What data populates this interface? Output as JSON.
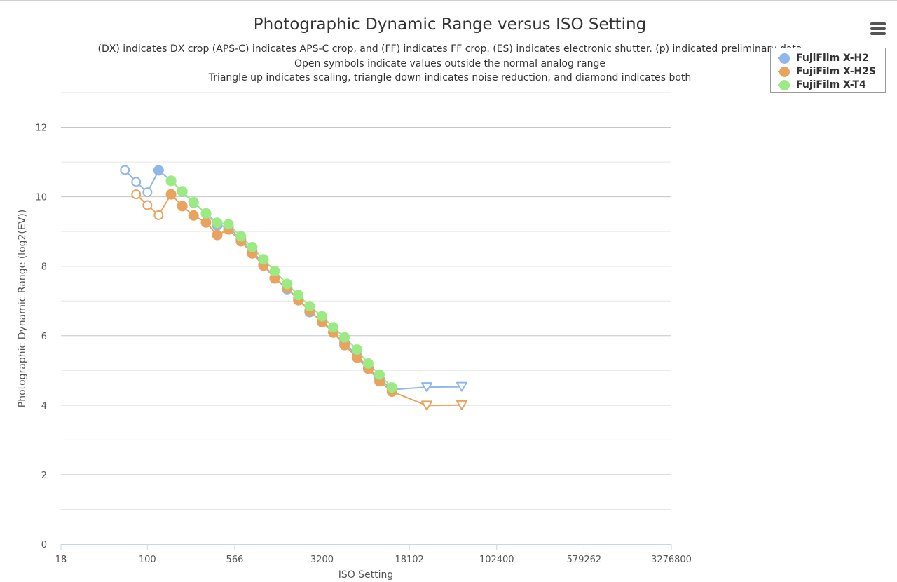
{
  "chart_data": {
    "type": "line",
    "title": "Photographic Dynamic Range versus ISO Setting",
    "subtitle": [
      "(DX) indicates DX crop (APS-C) indicates APS-C crop, and (FF) indicates FF crop. (ES) indicates electronic shutter. (p) indicated preliminary data",
      "Open symbols indicate values outside the normal analog range",
      "Triangle up indicates scaling, triangle down indicates noise reduction, and diamond indicates both"
    ],
    "xlabel": "ISO Setting",
    "ylabel": "Photographic Dynamic Range (log2(EV))",
    "x_scale": "log2",
    "xlim": [
      18,
      3276800
    ],
    "ylim": [
      0,
      13
    ],
    "x_ticks": [
      18,
      100,
      566,
      3200,
      18102,
      102400,
      579262,
      3276800
    ],
    "x_tick_labels": [
      "18",
      "100",
      "566",
      "3200",
      "18102",
      "102400",
      "579262",
      "3276800"
    ],
    "y_ticks": [
      0,
      2,
      4,
      6,
      8,
      10,
      12
    ],
    "y_tick_labels": [
      "0",
      "2",
      "4",
      "6",
      "8",
      "10",
      "12"
    ],
    "grid": true,
    "legend_position": "top-right",
    "series": [
      {
        "name": "FujiFilm X-H2",
        "color": "#91b6e8",
        "points": [
          {
            "x": 64,
            "y": 10.77,
            "marker": "circle-open"
          },
          {
            "x": 80,
            "y": 10.43,
            "marker": "circle-open"
          },
          {
            "x": 100,
            "y": 10.13,
            "marker": "circle-open"
          },
          {
            "x": 125,
            "y": 10.76,
            "marker": "circle"
          },
          {
            "x": 160,
            "y": 10.46,
            "marker": "circle"
          },
          {
            "x": 200,
            "y": 10.15,
            "marker": "circle"
          },
          {
            "x": 250,
            "y": 9.83,
            "marker": "circle"
          },
          {
            "x": 320,
            "y": 9.52,
            "marker": "circle"
          },
          {
            "x": 400,
            "y": 9.18,
            "marker": "circle"
          },
          {
            "x": 500,
            "y": 9.13,
            "marker": "circle"
          },
          {
            "x": 640,
            "y": 8.78,
            "marker": "circle"
          },
          {
            "x": 800,
            "y": 8.45,
            "marker": "circle"
          },
          {
            "x": 1000,
            "y": 8.05,
            "marker": "circle"
          },
          {
            "x": 1250,
            "y": 7.66,
            "marker": "circle"
          },
          {
            "x": 1600,
            "y": 7.34,
            "marker": "circle"
          },
          {
            "x": 2000,
            "y": 7.08,
            "marker": "circle"
          },
          {
            "x": 2500,
            "y": 6.68,
            "marker": "circle"
          },
          {
            "x": 3200,
            "y": 6.43,
            "marker": "circle"
          },
          {
            "x": 4000,
            "y": 6.1,
            "marker": "circle"
          },
          {
            "x": 5000,
            "y": 5.79,
            "marker": "circle"
          },
          {
            "x": 6400,
            "y": 5.43,
            "marker": "circle"
          },
          {
            "x": 8000,
            "y": 5.08,
            "marker": "circle"
          },
          {
            "x": 10000,
            "y": 4.77,
            "marker": "circle"
          },
          {
            "x": 12800,
            "y": 4.45,
            "marker": "circle"
          },
          {
            "x": 25600,
            "y": 4.52,
            "marker": "triangle-down-open"
          },
          {
            "x": 51200,
            "y": 4.53,
            "marker": "triangle-down-open"
          }
        ]
      },
      {
        "name": "FujiFilm X-H2S",
        "color": "#e9a35f",
        "points": [
          {
            "x": 80,
            "y": 10.07,
            "marker": "circle-open"
          },
          {
            "x": 100,
            "y": 9.76,
            "marker": "circle-open"
          },
          {
            "x": 125,
            "y": 9.47,
            "marker": "circle-open"
          },
          {
            "x": 160,
            "y": 10.07,
            "marker": "circle"
          },
          {
            "x": 200,
            "y": 9.73,
            "marker": "circle"
          },
          {
            "x": 250,
            "y": 9.46,
            "marker": "circle"
          },
          {
            "x": 320,
            "y": 9.26,
            "marker": "circle"
          },
          {
            "x": 400,
            "y": 8.9,
            "marker": "circle"
          },
          {
            "x": 500,
            "y": 9.06,
            "marker": "circle"
          },
          {
            "x": 640,
            "y": 8.72,
            "marker": "circle"
          },
          {
            "x": 800,
            "y": 8.37,
            "marker": "circle"
          },
          {
            "x": 1000,
            "y": 8.02,
            "marker": "circle"
          },
          {
            "x": 1250,
            "y": 7.65,
            "marker": "circle"
          },
          {
            "x": 1600,
            "y": 7.38,
            "marker": "circle"
          },
          {
            "x": 2000,
            "y": 7.02,
            "marker": "circle"
          },
          {
            "x": 2500,
            "y": 6.72,
            "marker": "circle"
          },
          {
            "x": 3200,
            "y": 6.39,
            "marker": "circle"
          },
          {
            "x": 4000,
            "y": 6.09,
            "marker": "circle"
          },
          {
            "x": 5000,
            "y": 5.73,
            "marker": "circle"
          },
          {
            "x": 6400,
            "y": 5.37,
            "marker": "circle"
          },
          {
            "x": 8000,
            "y": 5.05,
            "marker": "circle"
          },
          {
            "x": 10000,
            "y": 4.69,
            "marker": "circle"
          },
          {
            "x": 12800,
            "y": 4.39,
            "marker": "circle"
          },
          {
            "x": 25600,
            "y": 3.99,
            "marker": "triangle-down-open"
          },
          {
            "x": 51200,
            "y": 4.0,
            "marker": "triangle-down-open"
          }
        ]
      },
      {
        "name": "FujiFilm X-T4",
        "color": "#9bea83",
        "points": [
          {
            "x": 160,
            "y": 10.46,
            "marker": "circle"
          },
          {
            "x": 200,
            "y": 10.16,
            "marker": "circle"
          },
          {
            "x": 250,
            "y": 9.84,
            "marker": "circle"
          },
          {
            "x": 320,
            "y": 9.52,
            "marker": "circle"
          },
          {
            "x": 400,
            "y": 9.25,
            "marker": "circle"
          },
          {
            "x": 500,
            "y": 9.21,
            "marker": "circle"
          },
          {
            "x": 640,
            "y": 8.86,
            "marker": "circle"
          },
          {
            "x": 800,
            "y": 8.55,
            "marker": "circle"
          },
          {
            "x": 1000,
            "y": 8.2,
            "marker": "circle"
          },
          {
            "x": 1250,
            "y": 7.86,
            "marker": "circle"
          },
          {
            "x": 1600,
            "y": 7.49,
            "marker": "circle"
          },
          {
            "x": 2000,
            "y": 7.17,
            "marker": "circle"
          },
          {
            "x": 2500,
            "y": 6.85,
            "marker": "circle"
          },
          {
            "x": 3200,
            "y": 6.56,
            "marker": "circle"
          },
          {
            "x": 4000,
            "y": 6.24,
            "marker": "circle"
          },
          {
            "x": 5000,
            "y": 5.95,
            "marker": "circle"
          },
          {
            "x": 6400,
            "y": 5.6,
            "marker": "circle"
          },
          {
            "x": 8000,
            "y": 5.2,
            "marker": "circle"
          },
          {
            "x": 10000,
            "y": 4.88,
            "marker": "circle"
          },
          {
            "x": 12800,
            "y": 4.51,
            "marker": "circle"
          }
        ]
      }
    ]
  }
}
